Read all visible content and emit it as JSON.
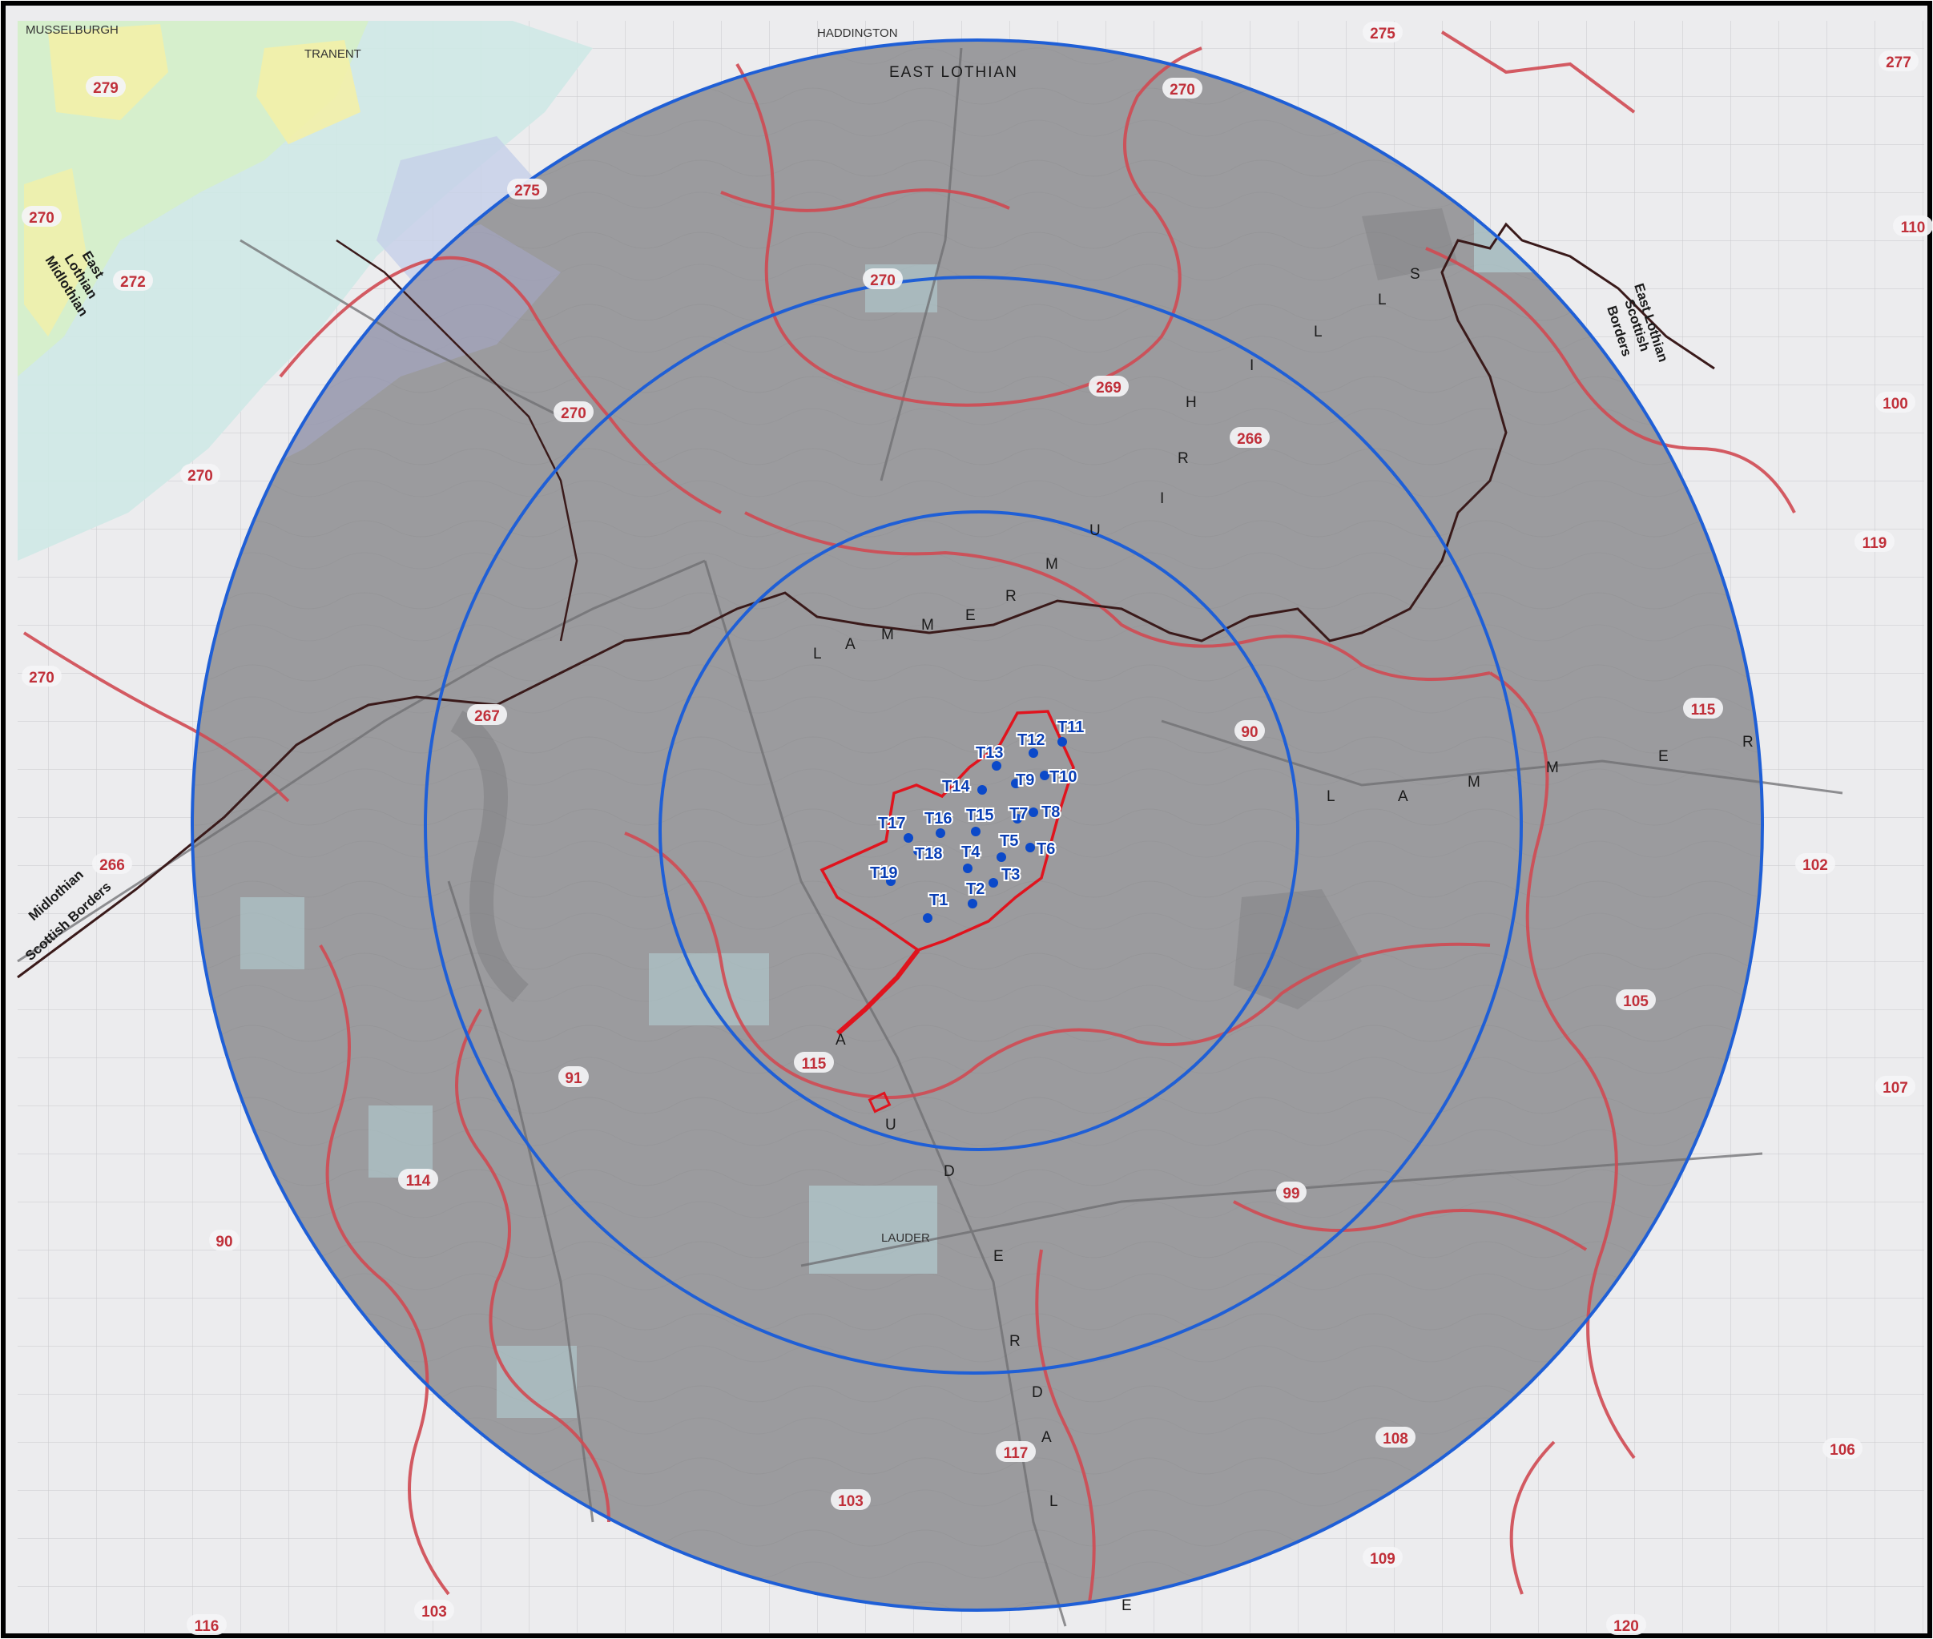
{
  "map": {
    "places": [
      {
        "id": "musselburgh",
        "text": "MUSSELBURGH"
      },
      {
        "id": "tranent",
        "text": "TRANENT"
      },
      {
        "id": "haddington",
        "text": "HADDINGTON"
      },
      {
        "id": "east_lothian_region",
        "text": "EAST LOTHIAN"
      },
      {
        "id": "lauder",
        "text": "LAUDER"
      }
    ],
    "boundary_labels": [
      {
        "id": "west_top_a",
        "text": "East"
      },
      {
        "id": "west_top_b",
        "text": "Lothian"
      },
      {
        "id": "west_top_c",
        "text": "Midlothian"
      },
      {
        "id": "sw_a",
        "text": "Midlothian"
      },
      {
        "id": "sw_b",
        "text": "Scottish Borders"
      },
      {
        "id": "ne_a",
        "text": "East Lothian"
      },
      {
        "id": "ne_b",
        "text": "Scottish"
      },
      {
        "id": "ne_c",
        "text": "Borders"
      }
    ],
    "terrain_letters": {
      "lammermuir_west": [
        "L",
        "A",
        "M",
        "M",
        "E",
        "R",
        "M",
        "U",
        "I",
        "R"
      ],
      "hills_north": [
        "H",
        "I",
        "L",
        "L",
        "S"
      ],
      "lammermuir_east": [
        "L",
        "A",
        "M",
        "M",
        "E",
        "R"
      ],
      "lauderdale": [
        "A",
        "U",
        "D",
        "E",
        "R",
        "D",
        "A",
        "L",
        "E"
      ]
    },
    "lca_labels": [
      {
        "id": "l279",
        "text": "279"
      },
      {
        "id": "l275a",
        "text": "275"
      },
      {
        "id": "l275b",
        "text": "275"
      },
      {
        "id": "l270a",
        "text": "270"
      },
      {
        "id": "l270b",
        "text": "270"
      },
      {
        "id": "l270c",
        "text": "270"
      },
      {
        "id": "l270d",
        "text": "270"
      },
      {
        "id": "l270e",
        "text": "270"
      },
      {
        "id": "l270f",
        "text": "270"
      },
      {
        "id": "l277",
        "text": "277"
      },
      {
        "id": "l272",
        "text": "272"
      },
      {
        "id": "l110",
        "text": "110"
      },
      {
        "id": "l269",
        "text": "269"
      },
      {
        "id": "l266a",
        "text": "266"
      },
      {
        "id": "l100",
        "text": "100"
      },
      {
        "id": "l119",
        "text": "119"
      },
      {
        "id": "l267",
        "text": "267"
      },
      {
        "id": "l90a",
        "text": "90"
      },
      {
        "id": "l115a",
        "text": "115"
      },
      {
        "id": "l266b",
        "text": "266"
      },
      {
        "id": "l102",
        "text": "102"
      },
      {
        "id": "l105",
        "text": "105"
      },
      {
        "id": "l115b",
        "text": "115"
      },
      {
        "id": "l91",
        "text": "91"
      },
      {
        "id": "l107",
        "text": "107"
      },
      {
        "id": "l114",
        "text": "114"
      },
      {
        "id": "l99",
        "text": "99"
      },
      {
        "id": "l90b",
        "text": "90"
      },
      {
        "id": "l108",
        "text": "108"
      },
      {
        "id": "l106",
        "text": "106"
      },
      {
        "id": "l117",
        "text": "117"
      },
      {
        "id": "l103a",
        "text": "103"
      },
      {
        "id": "l109",
        "text": "109"
      },
      {
        "id": "l116",
        "text": "116"
      },
      {
        "id": "l103b",
        "text": "103"
      },
      {
        "id": "l120",
        "text": "120"
      }
    ],
    "turbines": [
      {
        "id": "t1",
        "label": "T1"
      },
      {
        "id": "t2",
        "label": "T2"
      },
      {
        "id": "t3",
        "label": "T3"
      },
      {
        "id": "t4",
        "label": "T4"
      },
      {
        "id": "t5",
        "label": "T5"
      },
      {
        "id": "t6",
        "label": "T6"
      },
      {
        "id": "t7",
        "label": "T7"
      },
      {
        "id": "t8",
        "label": "T8"
      },
      {
        "id": "t9",
        "label": "T9"
      },
      {
        "id": "t10",
        "label": "T10"
      },
      {
        "id": "t11",
        "label": "T11"
      },
      {
        "id": "t12",
        "label": "T12"
      },
      {
        "id": "t13",
        "label": "T13"
      },
      {
        "id": "t14",
        "label": "T14"
      },
      {
        "id": "t15",
        "label": "T15"
      },
      {
        "id": "t16",
        "label": "T16"
      },
      {
        "id": "t17",
        "label": "T17"
      },
      {
        "id": "t18",
        "label": "T18"
      },
      {
        "id": "t19",
        "label": "T19"
      }
    ],
    "colors": {
      "study_ring": "#1f5fd6",
      "site_boundary": "#e0141e",
      "lca_boundary": "#d04a52",
      "council_boundary": "#3a1a1a",
      "zone_shade": "#9a9a9c",
      "turbine": "#0b49c9"
    }
  }
}
